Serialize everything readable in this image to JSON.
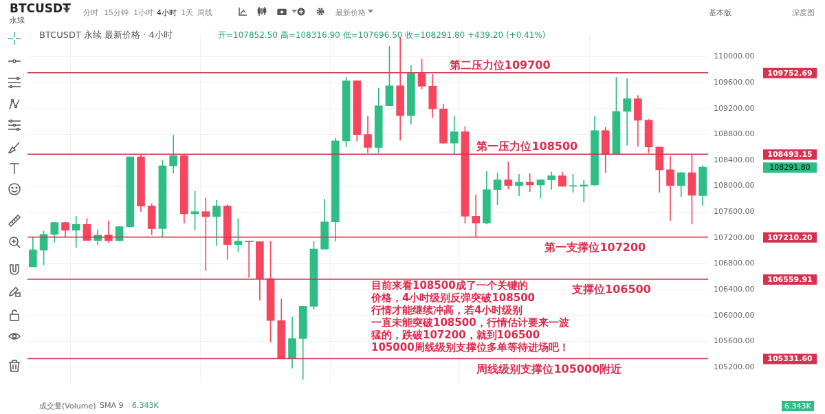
{
  "chart_data": {
    "type": "candlestick",
    "title": "BTCUSDT 永续 最新价格 · 4小时",
    "subtitle": "开=107852.50 高=108316.90 低=107696.50 收=108291.80 +439.20 (+0.41%)",
    "categories": [
      null,
      null,
      null,
      null,
      null,
      null,
      null,
      null,
      null,
      null,
      null,
      null,
      null,
      null,
      null,
      null,
      null,
      null,
      null,
      null,
      null,
      null,
      null,
      null,
      null,
      null,
      null,
      null,
      null,
      null,
      null,
      null,
      null,
      null,
      null,
      null,
      null,
      null,
      null,
      null,
      null,
      null,
      null,
      null,
      null,
      null,
      null,
      null,
      null,
      null,
      null,
      null,
      null,
      null,
      null,
      null,
      null,
      null,
      null,
      null,
      null,
      null,
      null
    ],
    "ohlc": [
      [
        106752,
        107219,
        106752,
        107015
      ],
      [
        107008,
        107306,
        106780,
        107254
      ],
      [
        107254,
        107440,
        107131,
        107436
      ],
      [
        107436,
        107440,
        107219,
        107317
      ],
      [
        107317,
        107535,
        107051,
        107408
      ],
      [
        107408,
        107499,
        107159,
        107159
      ],
      [
        107159,
        107331,
        107096,
        107243
      ],
      [
        107243,
        107464,
        107131,
        107156
      ],
      [
        107156,
        107380,
        107150,
        107373
      ],
      [
        107373,
        108453,
        107373,
        108453
      ],
      [
        108453,
        108481,
        107605,
        107692
      ],
      [
        107692,
        107727,
        107247,
        107342
      ],
      [
        107342,
        108401,
        107219,
        108313
      ],
      [
        108313,
        108790,
        108201,
        108471
      ],
      [
        108471,
        108481,
        107429,
        107570
      ],
      [
        107570,
        107920,
        107324,
        107605
      ],
      [
        107605,
        107815,
        106693,
        107527
      ],
      [
        107527,
        107780,
        107079,
        107692
      ],
      [
        107692,
        107710,
        106868,
        107096
      ],
      [
        107096,
        107499,
        106980,
        107149
      ],
      [
        107149,
        107149,
        106587,
        107140
      ],
      [
        107140,
        107145,
        106237,
        106570
      ],
      [
        106570,
        107149,
        105588,
        105921
      ],
      [
        105921,
        106254,
        105336,
        105336
      ],
      [
        105336,
        105974,
        105185,
        105641
      ],
      [
        105641,
        106142,
        105010,
        106142
      ],
      [
        106142,
        107149,
        106097,
        107026
      ],
      [
        107026,
        107797,
        107026,
        107447
      ],
      [
        107447,
        108744,
        107149,
        108699
      ],
      [
        108699,
        109681,
        108604,
        109628
      ],
      [
        109628,
        109630,
        108692,
        108797
      ],
      [
        108797,
        109078,
        108516,
        108597
      ],
      [
        108597,
        109516,
        108516,
        109242
      ],
      [
        109242,
        110165,
        109242,
        109551
      ],
      [
        109551,
        110305,
        108709,
        109088
      ],
      [
        109088,
        109867,
        108955,
        109744
      ],
      [
        109744,
        109965,
        109498,
        109544
      ],
      [
        109544,
        109726,
        109060,
        109193
      ],
      [
        109193,
        109270,
        108664,
        108664
      ],
      [
        108664,
        109078,
        108481,
        108839
      ],
      [
        108839,
        108920,
        107429,
        107535
      ],
      [
        107535,
        107868,
        107219,
        107429
      ],
      [
        107429,
        108225,
        107412,
        107945
      ],
      [
        107945,
        108201,
        107710,
        108096
      ],
      [
        108096,
        108376,
        107955,
        108008
      ],
      [
        108008,
        108183,
        107850,
        108060
      ],
      [
        108060,
        108194,
        107913,
        108018
      ],
      [
        108018,
        108100,
        107815,
        108096
      ],
      [
        108096,
        108218,
        107948,
        108159
      ],
      [
        108159,
        108218,
        107990,
        107997
      ],
      [
        107997,
        108183,
        107903,
        108004
      ],
      [
        107997,
        108089,
        107752,
        108018
      ],
      [
        108018,
        109078,
        108008,
        108860
      ],
      [
        108860,
        108909,
        108208,
        108499
      ],
      [
        108499,
        109681,
        108499,
        109155
      ],
      [
        109155,
        109663,
        108629,
        109351
      ],
      [
        109351,
        109400,
        108615,
        109018
      ],
      [
        109018,
        109032,
        108516,
        108604
      ],
      [
        108604,
        108610,
        107903,
        108253
      ],
      [
        108253,
        108464,
        107464,
        108008
      ],
      [
        108008,
        108215,
        107833,
        108208
      ],
      [
        108208,
        108481,
        107412,
        107857
      ],
      [
        107852.5,
        108316.9,
        107696.5,
        108291.8
      ]
    ],
    "colors": [
      "#2ebd85",
      "#2ebd85",
      "#2ebd85",
      "#f6465d",
      "#2ebd85",
      "#f6465d",
      "#2ebd85",
      "#f6465d",
      "#2ebd85",
      "#2ebd85",
      "#f6465d",
      "#f6465d",
      "#2ebd85",
      "#2ebd85",
      "#f6465d",
      "#2ebd85",
      "#f6465d",
      "#2ebd85",
      "#f6465d",
      "#2ebd85",
      "#f6465d",
      "#f6465d",
      "#f6465d",
      "#f6465d",
      "#2ebd85",
      "#2ebd85",
      "#2ebd85",
      "#2ebd85",
      "#2ebd85",
      "#2ebd85",
      "#f6465d",
      "#f6465d",
      "#2ebd85",
      "#2ebd85",
      "#f6465d",
      "#2ebd85",
      "#f6465d",
      "#f6465d",
      "#f6465d",
      "#2ebd85",
      "#f6465d",
      "#f6465d",
      "#2ebd85",
      "#2ebd85",
      "#f6465d",
      "#2ebd85",
      "#f6465d",
      "#2ebd85",
      "#2ebd85",
      "#f6465d",
      "#2ebd85",
      "#2ebd85",
      "#2ebd85",
      "#f6465d",
      "#2ebd85",
      "#2ebd85",
      "#f6465d",
      "#f6465d",
      "#f6465d",
      "#f6465d",
      "#2ebd85",
      "#f6465d",
      "#2ebd85"
    ],
    "ylim": [
      104950,
      110350
    ],
    "yticks": [
      {
        "value": 105200,
        "label": "105200.00"
      },
      {
        "value": 105600,
        "label": "105600.00"
      },
      {
        "value": 106000,
        "label": "106000.00"
      },
      {
        "value": 106400,
        "label": "106400.00"
      },
      {
        "value": 106800,
        "label": "106800.00"
      },
      {
        "value": 107200,
        "label": "107200.00"
      },
      {
        "value": 107600,
        "label": "107600.00"
      },
      {
        "value": 108000,
        "label": "108000.00"
      },
      {
        "value": 108400,
        "label": "108400.00"
      },
      {
        "value": 108800,
        "label": "108800.00"
      },
      {
        "value": 109200,
        "label": "109200.00"
      },
      {
        "value": 109600,
        "label": "109600.00"
      },
      {
        "value": 110000,
        "label": "110000.00"
      }
    ],
    "ref_lines": [
      {
        "axis": "y",
        "value": 109752.69,
        "label": "第二压力位109700",
        "color": "#d9304f"
      },
      {
        "axis": "y",
        "value": 108493.15,
        "label": "第一压力位108500",
        "color": "#d9304f"
      },
      {
        "axis": "y",
        "value": 107210.2,
        "label": "第一支撑位107200",
        "color": "#d9304f"
      },
      {
        "axis": "y",
        "value": 106559.91,
        "label": "支撑位106500",
        "color": "#d9304f"
      },
      {
        "axis": "y",
        "value": 105331.6,
        "label": "周线级别支撑位105000附近",
        "color": "#d9304f"
      }
    ],
    "annotations": [
      "BTCUSDT",
      "永续",
      "分时",
      "15分钟",
      "1小时",
      "4小时",
      "1天",
      "周线",
      "最新价格",
      "基本版",
      "深度图",
      "目前来看108500成了一个关键的价格，4小时级别反弹突破108500行情才能继续冲高，若4小时级别一直未能突破108500，行情估计要来一波猛的，跌破107200，就到106500105000周线级别支撑位多单等待进场吧！",
      "成交量(Volume)",
      "SMA 9",
      "6.343K",
      "6.343K",
      "109752.69",
      "108493.15",
      "107210.20",
      "106559.91",
      "105331.60",
      "108291.80"
    ],
    "grid": true,
    "legend": false
  }
}
